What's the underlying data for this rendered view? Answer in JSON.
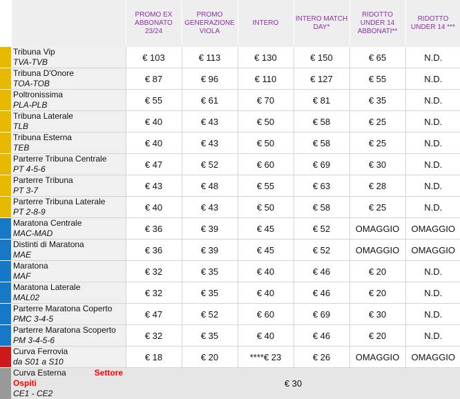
{
  "colors": {
    "tribuna": "#e6b800",
    "maratona": "#1878c8",
    "curva_ferrovia": "#cc1a1a",
    "curva_esterna": "#999999",
    "header_text": "#8d2fa8",
    "accent_red": "#ff0000"
  },
  "header": {
    "col1": "PROMO EX ABBONATO 23/24",
    "col2": "PROMO GENERAZIONE VIOLA",
    "col3": "INTERO",
    "col4": "INTERO MATCH DAY*",
    "col5": "RIDOTTO UNDER 14 ABBONATI**",
    "col6": "RIDOTTO UNDER 14 ***"
  },
  "rows": [
    {
      "section": "Tribuna Vip",
      "code": "TVA-TVB",
      "group": "tribuna",
      "prices": [
        "€ 103",
        "€ 113",
        "€ 130",
        "€ 150",
        "€ 65",
        "N.D."
      ]
    },
    {
      "section": "Tribuna D'Onore",
      "code": "TOA-TOB",
      "group": "tribuna",
      "prices": [
        "€ 87",
        "€ 96",
        "€ 110",
        "€ 127",
        "€ 55",
        "N.D."
      ]
    },
    {
      "section": "Poltronissima",
      "code": "PLA-PLB",
      "group": "tribuna",
      "prices": [
        "€ 55",
        "€ 61",
        "€ 70",
        "€ 81",
        "€ 35",
        "N.D."
      ]
    },
    {
      "section": "Tribuna Laterale",
      "code": "TLB",
      "group": "tribuna",
      "prices": [
        "€ 40",
        "€ 43",
        "€ 50",
        "€ 58",
        "€ 25",
        "N.D."
      ]
    },
    {
      "section": "Tribuna Esterna",
      "code": "TEB",
      "group": "tribuna",
      "prices": [
        "€ 40",
        "€ 43",
        "€ 50",
        "€ 58",
        "€ 25",
        "N.D."
      ]
    },
    {
      "section": "Parterre Tribuna Centrale",
      "code": "PT 4-5-6",
      "group": "tribuna",
      "prices": [
        "€ 47",
        "€ 52",
        "€ 60",
        "€ 69",
        "€ 30",
        "N.D."
      ]
    },
    {
      "section": "Parterre Tribuna",
      "code": "PT 3-7",
      "group": "tribuna",
      "prices": [
        "€ 43",
        "€ 48",
        "€ 55",
        "€ 63",
        "€ 28",
        "N.D."
      ]
    },
    {
      "section": "Parterre Tribuna Laterale",
      "code": "PT 2-8-9",
      "group": "tribuna",
      "prices": [
        "€ 40",
        "€ 43",
        "€ 50",
        "€ 58",
        "€ 25",
        "N.D."
      ]
    },
    {
      "section": "Maratona Centrale",
      "code": "MAC-MAD",
      "group": "maratona",
      "prices": [
        "€ 36",
        "€ 39",
        "€ 45",
        "€ 52",
        "OMAGGIO",
        "OMAGGIO"
      ]
    },
    {
      "section": "Distinti di Maratona",
      "code": "MAE",
      "group": "maratona",
      "prices": [
        "€ 36",
        "€ 39",
        "€ 45",
        "€ 52",
        "OMAGGIO",
        "OMAGGIO"
      ]
    },
    {
      "section": "Maratona",
      "code": "MAF",
      "group": "maratona",
      "prices": [
        "€ 32",
        "€ 35",
        "€ 40",
        "€ 46",
        "€ 20",
        "N.D."
      ]
    },
    {
      "section": "Maratona Laterale",
      "code": "MAL02",
      "group": "maratona",
      "prices": [
        "€ 32",
        "€ 35",
        "€ 40",
        "€ 46",
        "€ 20",
        "N.D."
      ]
    },
    {
      "section": "Parterre Maratona Coperto",
      "code": "PMC 3-4-5",
      "group": "maratona",
      "prices": [
        "€ 47",
        "€ 52",
        "€ 60",
        "€ 69",
        "€ 30",
        "N.D."
      ]
    },
    {
      "section": "Parterre Maratona Scoperto",
      "code": "PM 3-4-5-6",
      "group": "maratona",
      "prices": [
        "€ 32",
        "€ 35",
        "€ 40",
        "€ 46",
        "€ 20",
        "N.D."
      ]
    },
    {
      "section": "Curva Ferrovia",
      "code": "da S01 a S10",
      "group": "curva_ferrovia",
      "prices": [
        "€ 18",
        "€ 20",
        "****€ 23",
        "€ 26",
        "OMAGGIO",
        "OMAGGIO"
      ]
    }
  ],
  "guest": {
    "section": "Curva Esterna",
    "label_settore": "Settore",
    "label_ospiti": "Ospiti",
    "code": "CE1 - CE2",
    "price": "€ 30"
  }
}
